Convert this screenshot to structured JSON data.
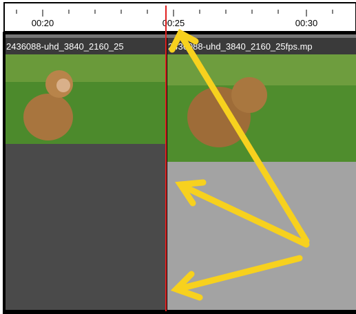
{
  "ruler": {
    "labels": [
      "00:20",
      "00:25",
      "00:30"
    ]
  },
  "clips": [
    {
      "label": "2436088-uhd_3840_2160_25"
    },
    {
      "label": "2436088-uhd_3840_2160_25fps.mp"
    }
  ]
}
